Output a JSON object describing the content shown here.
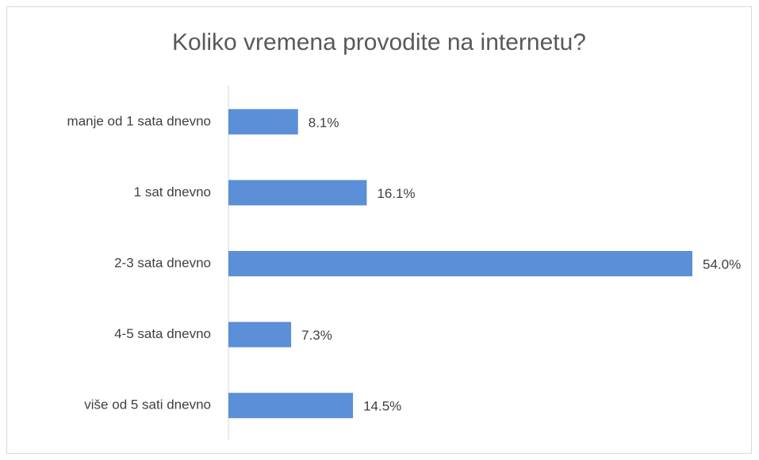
{
  "chart_data": {
    "type": "bar",
    "orientation": "horizontal",
    "title": "Koliko vremena provodite na internetu?",
    "categories": [
      "manje od 1 sata  dnevno",
      "1 sat dnevno",
      "2-3 sata dnevno",
      "4-5 sata dnevno",
      "više od 5 sati dnevno"
    ],
    "values": [
      8.1,
      16.1,
      54.0,
      7.3,
      14.5
    ],
    "value_labels": [
      "8.1%",
      "16.1%",
      "54.0%",
      "7.3%",
      "14.5%"
    ],
    "color": "#5b8fd7",
    "xlim": [
      0,
      60
    ]
  }
}
